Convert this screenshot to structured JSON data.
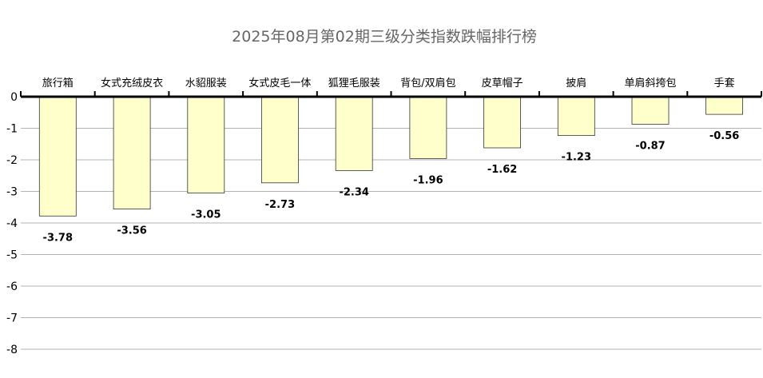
{
  "chart_data": {
    "type": "bar",
    "title": "2025年08月第02期三级分类指数跌幅排行榜",
    "categories": [
      "旅行箱",
      "女式充绒皮衣",
      "水貂服装",
      "女式皮毛一体",
      "狐狸毛服装",
      "背包/双肩包",
      "皮草帽子",
      "披肩",
      "单肩斜挎包",
      "手套"
    ],
    "values": [
      -3.78,
      -3.56,
      -3.05,
      -2.73,
      -2.34,
      -1.96,
      -1.62,
      -1.23,
      -0.87,
      -0.56
    ],
    "value_labels": [
      "-3.78",
      "-3.56",
      "-3.05",
      "-2.73",
      "-2.34",
      "-1.96",
      "-1.62",
      "-1.23",
      "-0.87",
      "-0.56"
    ],
    "yticks": [
      "0",
      "-1",
      "-2",
      "-3",
      "-4",
      "-5",
      "-6",
      "-7",
      "-8"
    ],
    "ylim": [
      -8,
      0
    ],
    "xlabel": "",
    "ylabel": "",
    "grid": true,
    "category_axis_position": "top",
    "colors": {
      "bar_fill": "#ffffcc",
      "bar_stroke": "#333333",
      "grid": "#b3b3b3",
      "axis": "#000000",
      "title": "#666666"
    }
  }
}
